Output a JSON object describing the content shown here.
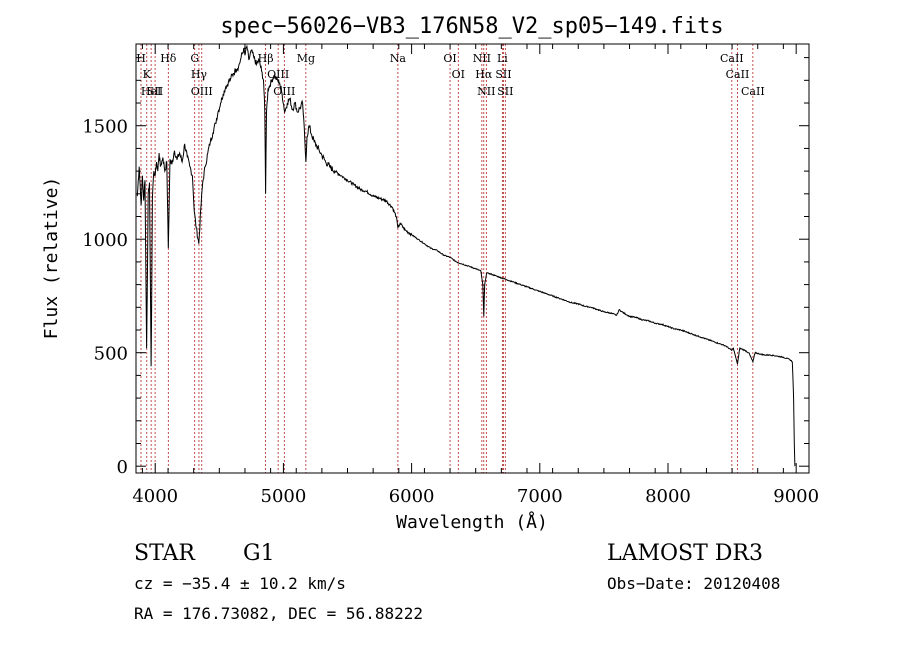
{
  "chart_data": {
    "type": "line",
    "title": "spec−56026−VB3_176N58_V2_sp05−149.fits",
    "xlabel": "Wavelength (Å)",
    "ylabel": "Flux (relative)",
    "xlim": [
      3850,
      9100
    ],
    "ylim": [
      -30,
      1860
    ],
    "xticks": [
      4000,
      5000,
      6000,
      7000,
      8000,
      9000
    ],
    "yticks": [
      0,
      500,
      1000,
      1500
    ],
    "grid": false,
    "series": [
      {
        "name": "spectrum",
        "points": [
          [
            3860,
            1190
          ],
          [
            3875,
            1320
          ],
          [
            3890,
            1150
          ],
          [
            3900,
            1280
          ],
          [
            3910,
            1170
          ],
          [
            3920,
            1260
          ],
          [
            3933,
            520
          ],
          [
            3945,
            1200
          ],
          [
            3955,
            1250
          ],
          [
            3968,
            440
          ],
          [
            3978,
            1180
          ],
          [
            3990,
            1300
          ],
          [
            4000,
            1280
          ],
          [
            4010,
            1340
          ],
          [
            4020,
            1300
          ],
          [
            4030,
            1380
          ],
          [
            4040,
            1320
          ],
          [
            4060,
            1360
          ],
          [
            4075,
            1300
          ],
          [
            4090,
            1340
          ],
          [
            4102,
            960
          ],
          [
            4115,
            1350
          ],
          [
            4130,
            1330
          ],
          [
            4150,
            1390
          ],
          [
            4170,
            1350
          ],
          [
            4190,
            1380
          ],
          [
            4210,
            1340
          ],
          [
            4230,
            1420
          ],
          [
            4250,
            1360
          ],
          [
            4270,
            1320
          ],
          [
            4290,
            1280
          ],
          [
            4305,
            1120
          ],
          [
            4320,
            1050
          ],
          [
            4340,
            980
          ],
          [
            4355,
            1130
          ],
          [
            4370,
            1250
          ],
          [
            4390,
            1320
          ],
          [
            4410,
            1380
          ],
          [
            4430,
            1430
          ],
          [
            4450,
            1470
          ],
          [
            4470,
            1510
          ],
          [
            4490,
            1560
          ],
          [
            4510,
            1600
          ],
          [
            4530,
            1640
          ],
          [
            4550,
            1670
          ],
          [
            4570,
            1690
          ],
          [
            4590,
            1710
          ],
          [
            4610,
            1730
          ],
          [
            4630,
            1750
          ],
          [
            4650,
            1760
          ],
          [
            4670,
            1800
          ],
          [
            4690,
            1840
          ],
          [
            4700,
            1810
          ],
          [
            4715,
            1850
          ],
          [
            4730,
            1790
          ],
          [
            4750,
            1830
          ],
          [
            4770,
            1800
          ],
          [
            4790,
            1770
          ],
          [
            4810,
            1790
          ],
          [
            4830,
            1740
          ],
          [
            4845,
            1700
          ],
          [
            4855,
            1560
          ],
          [
            4861,
            1200
          ],
          [
            4868,
            1560
          ],
          [
            4880,
            1660
          ],
          [
            4895,
            1680
          ],
          [
            4910,
            1700
          ],
          [
            4925,
            1720
          ],
          [
            4940,
            1710
          ],
          [
            4955,
            1700
          ],
          [
            4970,
            1690
          ],
          [
            4990,
            1640
          ],
          [
            5010,
            1560
          ],
          [
            5030,
            1600
          ],
          [
            5050,
            1620
          ],
          [
            5070,
            1570
          ],
          [
            5090,
            1600
          ],
          [
            5110,
            1560
          ],
          [
            5130,
            1580
          ],
          [
            5150,
            1600
          ],
          [
            5167,
            1440
          ],
          [
            5175,
            1340
          ],
          [
            5184,
            1450
          ],
          [
            5200,
            1500
          ],
          [
            5220,
            1460
          ],
          [
            5240,
            1430
          ],
          [
            5260,
            1410
          ],
          [
            5280,
            1390
          ],
          [
            5300,
            1370
          ],
          [
            5330,
            1340
          ],
          [
            5360,
            1320
          ],
          [
            5400,
            1300
          ],
          [
            5450,
            1280
          ],
          [
            5500,
            1260
          ],
          [
            5550,
            1240
          ],
          [
            5600,
            1220
          ],
          [
            5650,
            1210
          ],
          [
            5700,
            1190
          ],
          [
            5750,
            1180
          ],
          [
            5800,
            1170
          ],
          [
            5850,
            1140
          ],
          [
            5880,
            1100
          ],
          [
            5893,
            1050
          ],
          [
            5910,
            1070
          ],
          [
            5950,
            1040
          ],
          [
            6000,
            1020
          ],
          [
            6050,
            1000
          ],
          [
            6100,
            980
          ],
          [
            6150,
            960
          ],
          [
            6200,
            950
          ],
          [
            6250,
            930
          ],
          [
            6300,
            920
          ],
          [
            6350,
            900
          ],
          [
            6400,
            890
          ],
          [
            6450,
            880
          ],
          [
            6500,
            870
          ],
          [
            6540,
            860
          ],
          [
            6555,
            800
          ],
          [
            6563,
            660
          ],
          [
            6570,
            800
          ],
          [
            6585,
            850
          ],
          [
            6600,
            850
          ],
          [
            6650,
            840
          ],
          [
            6700,
            830
          ],
          [
            6750,
            820
          ],
          [
            6800,
            810
          ],
          [
            6850,
            800
          ],
          [
            6900,
            790
          ],
          [
            6950,
            780
          ],
          [
            7000,
            770
          ],
          [
            7050,
            760
          ],
          [
            7100,
            750
          ],
          [
            7150,
            740
          ],
          [
            7200,
            730
          ],
          [
            7250,
            720
          ],
          [
            7300,
            715
          ],
          [
            7350,
            705
          ],
          [
            7400,
            700
          ],
          [
            7450,
            690
          ],
          [
            7500,
            680
          ],
          [
            7550,
            675
          ],
          [
            7600,
            665
          ],
          [
            7620,
            690
          ],
          [
            7640,
            680
          ],
          [
            7700,
            660
          ],
          [
            7750,
            655
          ],
          [
            7800,
            645
          ],
          [
            7850,
            640
          ],
          [
            7900,
            630
          ],
          [
            7950,
            625
          ],
          [
            8000,
            615
          ],
          [
            8050,
            605
          ],
          [
            8100,
            600
          ],
          [
            8150,
            590
          ],
          [
            8200,
            580
          ],
          [
            8250,
            570
          ],
          [
            8300,
            560
          ],
          [
            8350,
            550
          ],
          [
            8400,
            540
          ],
          [
            8450,
            530
          ],
          [
            8498,
            510
          ],
          [
            8510,
            520
          ],
          [
            8542,
            450
          ],
          [
            8560,
            520
          ],
          [
            8600,
            510
          ],
          [
            8630,
            500
          ],
          [
            8662,
            460
          ],
          [
            8680,
            500
          ],
          [
            8750,
            490
          ],
          [
            8800,
            490
          ],
          [
            8850,
            485
          ],
          [
            8900,
            480
          ],
          [
            8950,
            470
          ],
          [
            8970,
            460
          ],
          [
            8980,
            300
          ],
          [
            8985,
            100
          ],
          [
            8990,
            0
          ]
        ]
      }
    ],
    "lines": [
      {
        "wl": 3889,
        "labels": [
          "H"
        ]
      },
      {
        "wl": 3934,
        "labels": [
          "K"
        ]
      },
      {
        "wl": 3968,
        "labels": [
          "HeI"
        ]
      },
      {
        "wl": 3999,
        "labels": [
          "SII"
        ]
      },
      {
        "wl": 4102,
        "labels": [
          "Hδ"
        ]
      },
      {
        "wl": 4308,
        "labels": [
          "G"
        ]
      },
      {
        "wl": 4341,
        "labels": [
          "Hγ"
        ]
      },
      {
        "wl": 4363,
        "labels": [
          "OIII"
        ]
      },
      {
        "wl": 4861,
        "labels": [
          "Hβ"
        ]
      },
      {
        "wl": 4959,
        "labels": [
          "OIII"
        ]
      },
      {
        "wl": 5007,
        "labels": [
          "OIII"
        ]
      },
      {
        "wl": 5175,
        "labels": [
          "Mg"
        ]
      },
      {
        "wl": 5893,
        "labels": [
          "Na"
        ]
      },
      {
        "wl": 6300,
        "labels": [
          "OI"
        ]
      },
      {
        "wl": 6364,
        "labels": [
          "OI"
        ]
      },
      {
        "wl": 6548,
        "labels": [
          "NII"
        ]
      },
      {
        "wl": 6563,
        "labels": [
          "Hα"
        ]
      },
      {
        "wl": 6583,
        "labels": [
          "NII"
        ]
      },
      {
        "wl": 6708,
        "labels": [
          "Li"
        ]
      },
      {
        "wl": 6717,
        "labels": [
          "SII"
        ]
      },
      {
        "wl": 6731,
        "labels": [
          "SII"
        ]
      },
      {
        "wl": 8498,
        "labels": [
          "CaII"
        ]
      },
      {
        "wl": 8542,
        "labels": [
          "CaII"
        ]
      },
      {
        "wl": 8662,
        "labels": [
          "CaII"
        ]
      }
    ],
    "line_color": "#b22222"
  },
  "info": {
    "object_class": "STAR",
    "subclass": "G1",
    "survey": "LAMOST DR3",
    "cz": "cz = −35.4 ± 10.2 km/s",
    "obs_date": "Obs−Date: 20120408",
    "coords": "RA = 176.73082, DEC =  56.88222"
  }
}
